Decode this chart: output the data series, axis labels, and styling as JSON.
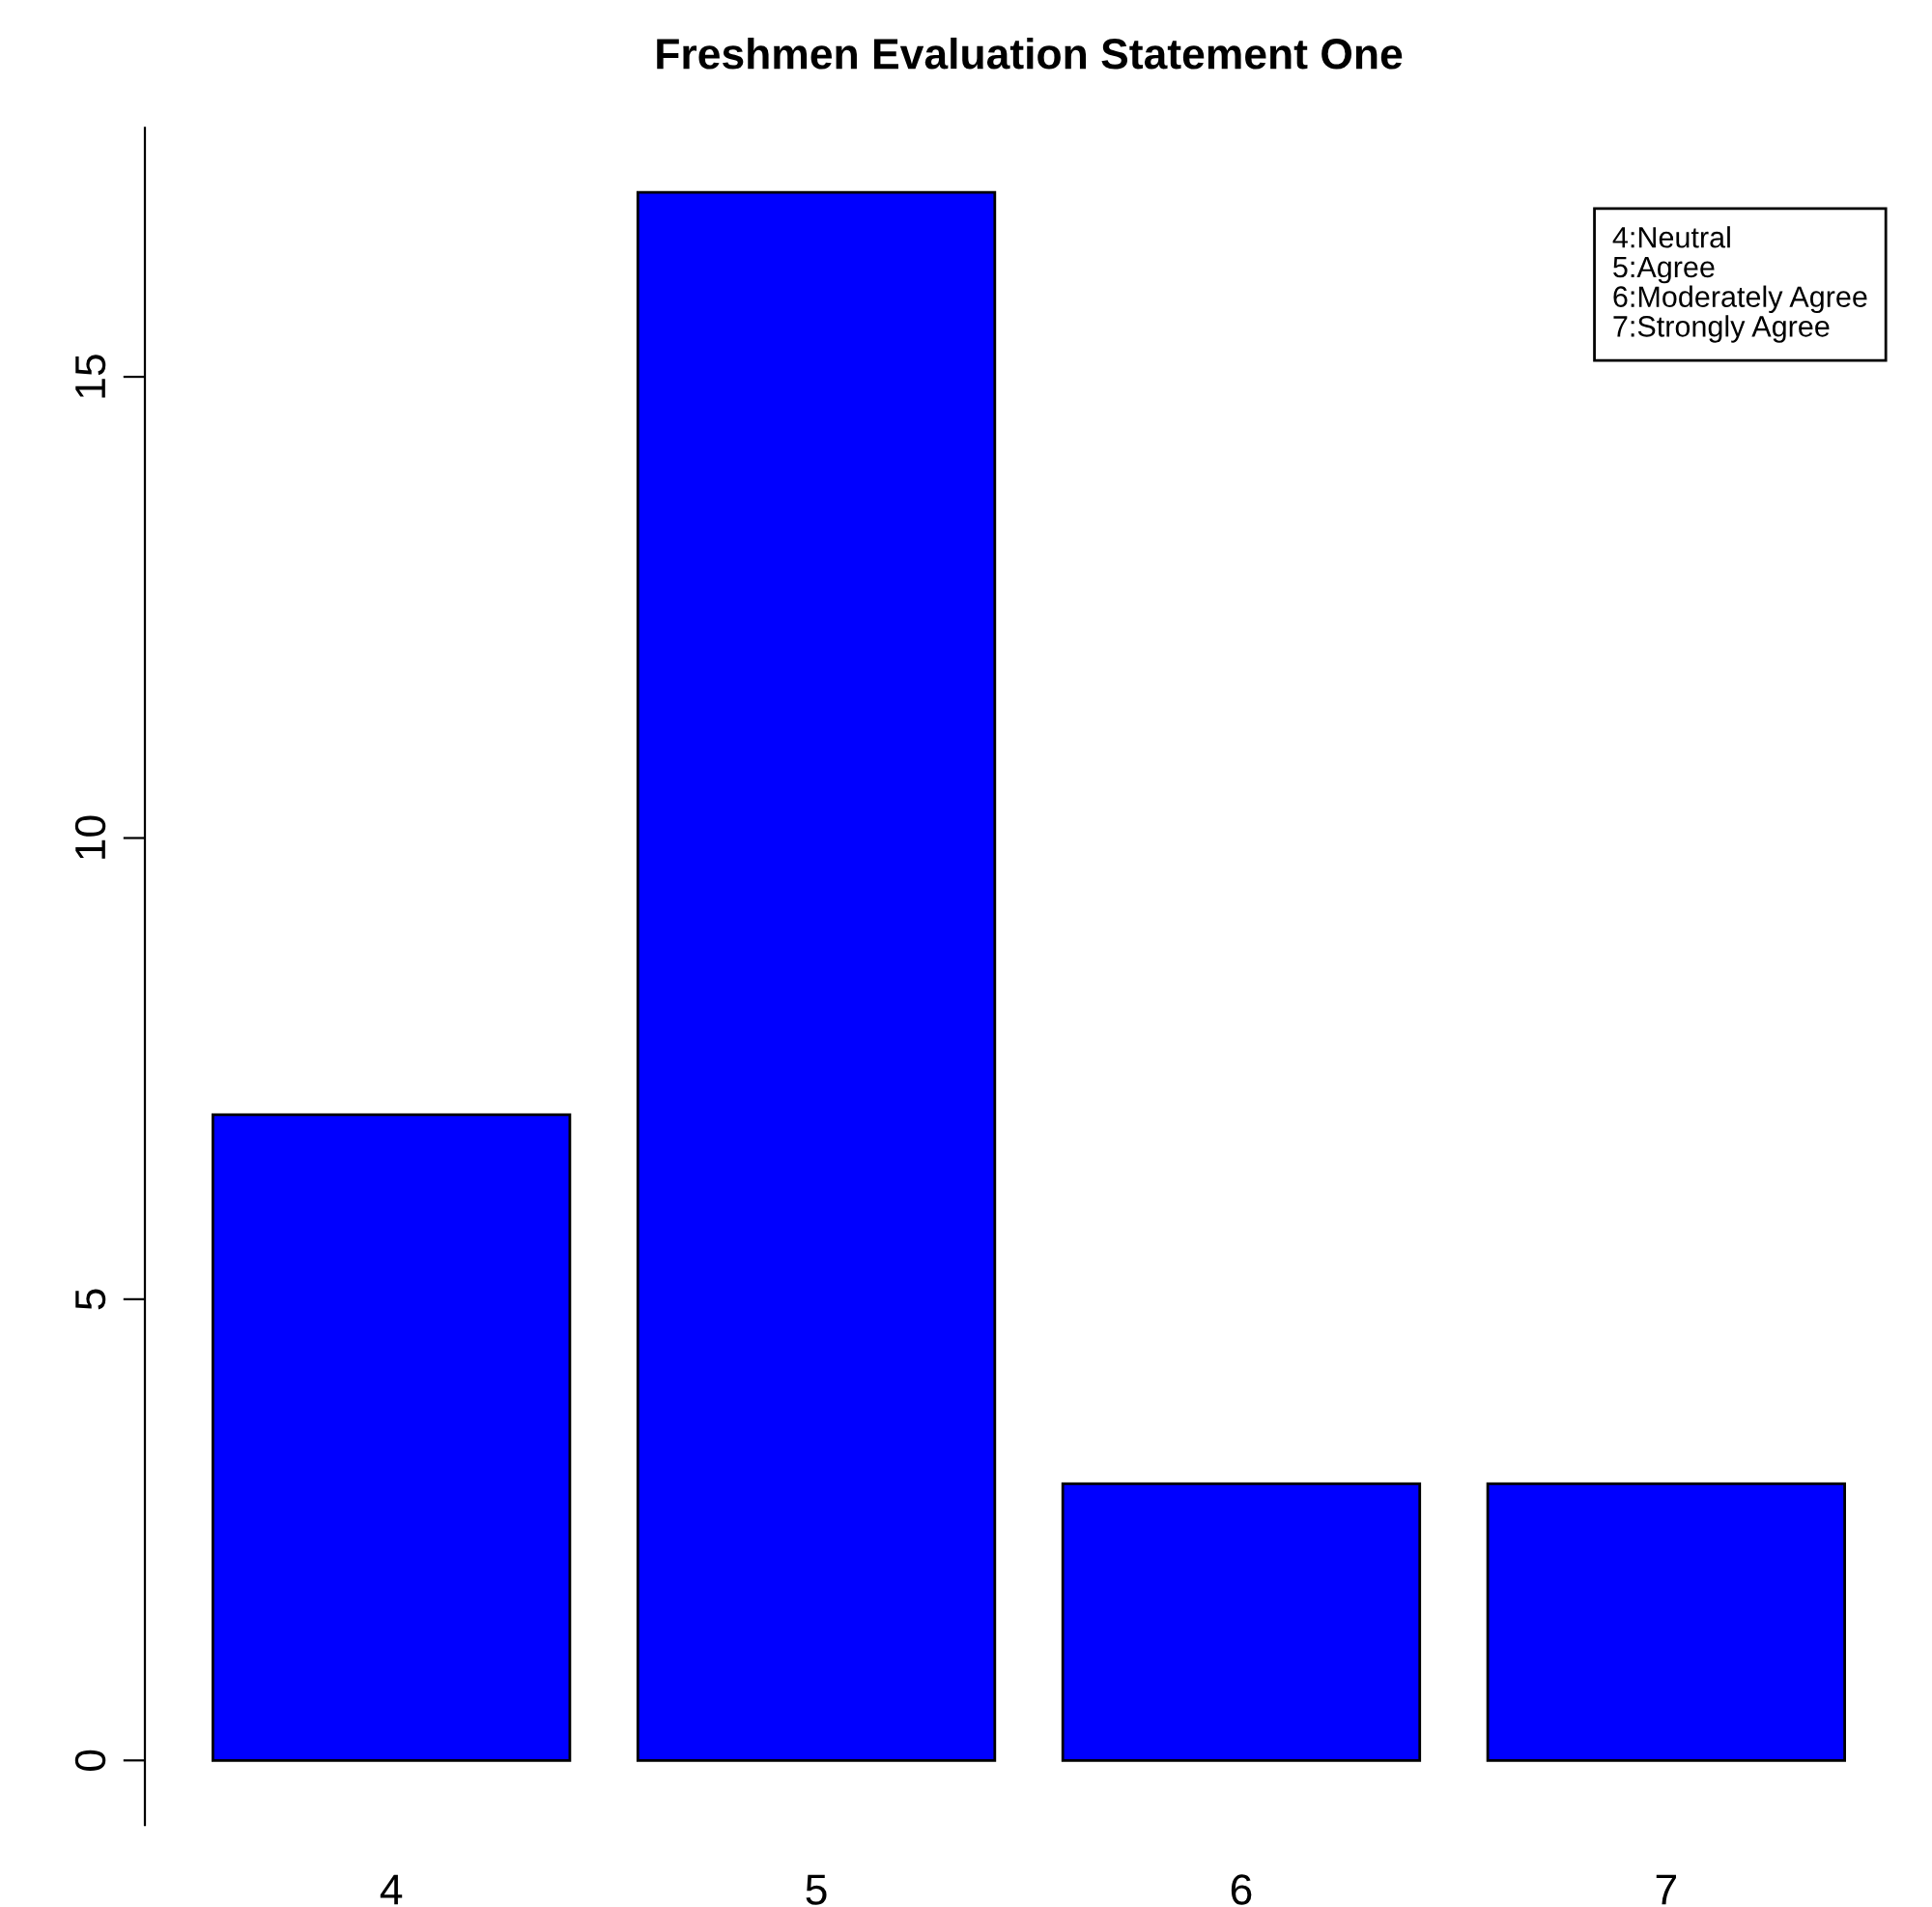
{
  "chart_data": {
    "type": "bar",
    "title": "Freshmen Evaluation Statement One",
    "categories": [
      "4",
      "5",
      "6",
      "7"
    ],
    "values": [
      7,
      17,
      3,
      3
    ],
    "color": "#0000ff",
    "ylim": [
      -0.7,
      17.7
    ],
    "yticks": [
      0,
      5,
      10,
      15
    ],
    "grid": false,
    "annotations": [
      "4:Neutral",
      "5:Agree",
      "6:Moderately Agree",
      "7:Strongly Agree"
    ]
  }
}
